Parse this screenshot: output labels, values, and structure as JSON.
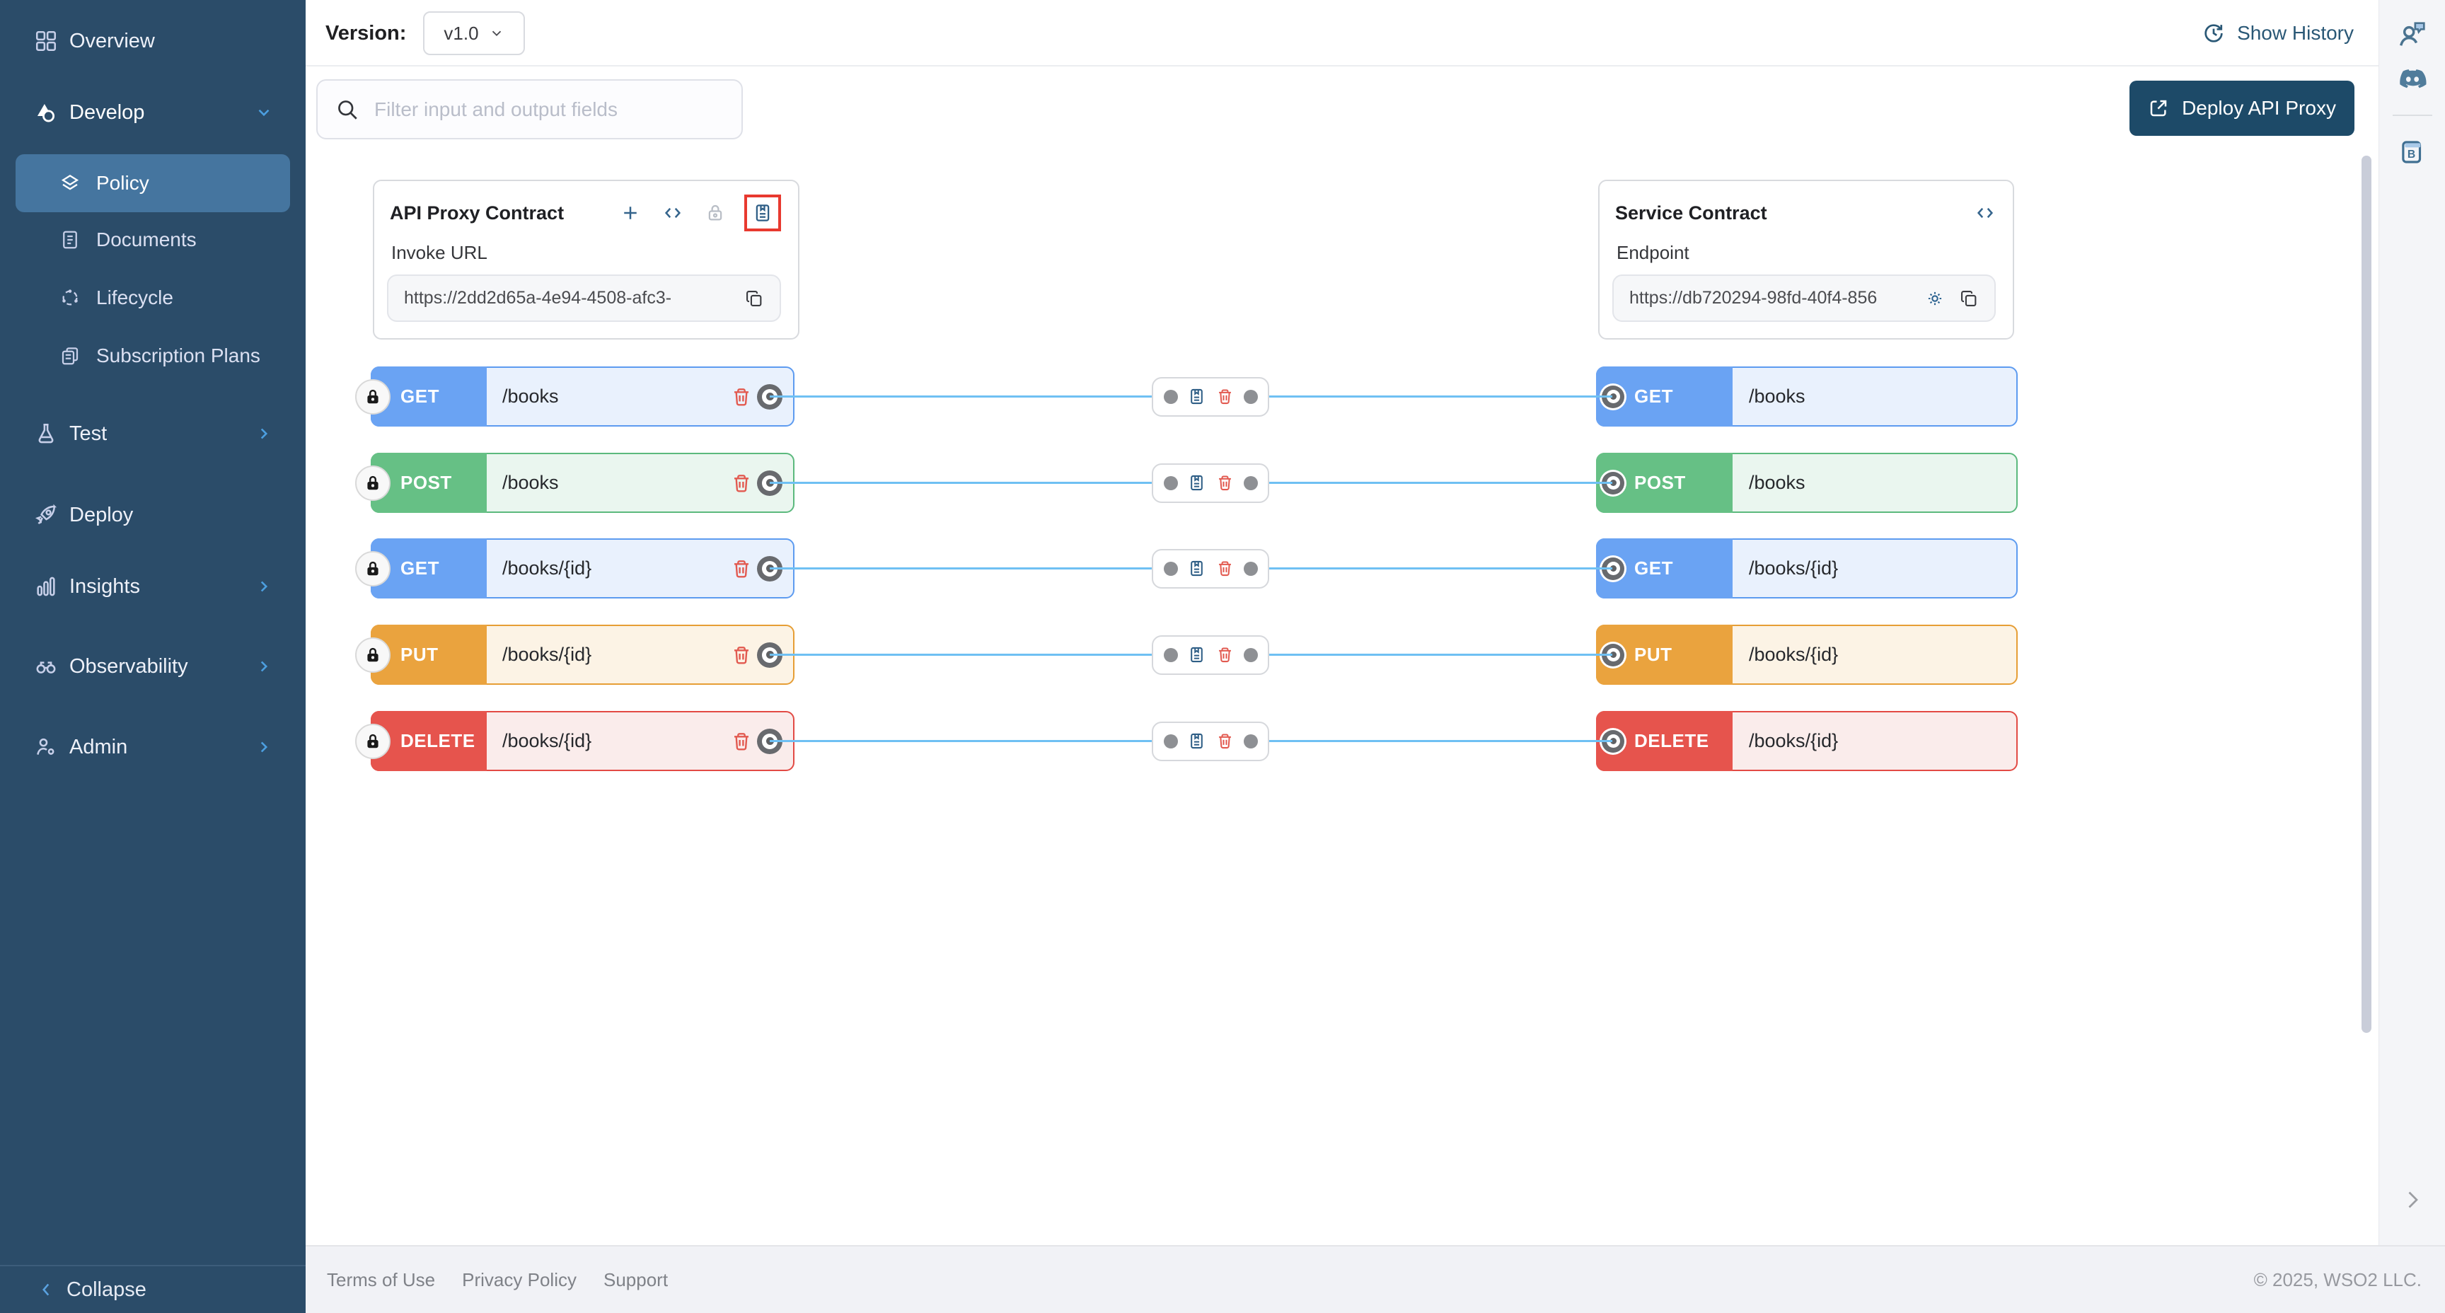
{
  "topbar": {
    "version_label": "Version:",
    "version_value": "v1.0",
    "show_history": "Show History"
  },
  "toolbar": {
    "filter_placeholder": "Filter input and output fields",
    "deploy_button": "Deploy API Proxy"
  },
  "sidebar": {
    "items": [
      {
        "label": "Overview",
        "icon": "grid-icon"
      },
      {
        "label": "Develop",
        "icon": "develop-icon",
        "state": "expanded"
      },
      {
        "label": "Policy",
        "icon": "layers-icon",
        "state": "selected"
      },
      {
        "label": "Documents",
        "icon": "document-icon"
      },
      {
        "label": "Lifecycle",
        "icon": "lifecycle-icon"
      },
      {
        "label": "Subscription Plans",
        "icon": "subscription-icon"
      },
      {
        "label": "Test",
        "icon": "flask-icon",
        "state": "collapsed"
      },
      {
        "label": "Deploy",
        "icon": "rocket-icon"
      },
      {
        "label": "Insights",
        "icon": "bar-chart-icon",
        "state": "collapsed"
      },
      {
        "label": "Observability",
        "icon": "binoculars-icon",
        "state": "collapsed"
      },
      {
        "label": "Admin",
        "icon": "admin-icon",
        "state": "collapsed"
      }
    ],
    "collapse_label": "Collapse"
  },
  "proxy_card": {
    "title": "API Proxy Contract",
    "field_label": "Invoke URL",
    "field_value": "https://2dd2d65a-4e94-4508-afc3-",
    "header_icons": [
      "add-resource-icon",
      "code-view-icon",
      "security-lock-icon",
      "policy-notebook-icon"
    ]
  },
  "service_card": {
    "title": "Service Contract",
    "field_label": "Endpoint",
    "field_value": "https://db720294-98fd-40f4-856",
    "header_icons": [
      "code-view-icon"
    ]
  },
  "mappings": [
    {
      "method": "GET",
      "proxy_path": "/books",
      "service_path": "/books",
      "color": "#6aa3f3",
      "border": "#5d9bf0",
      "tint": "#e9f1fd"
    },
    {
      "method": "POST",
      "proxy_path": "/books",
      "service_path": "/books",
      "color": "#66c085",
      "border": "#5bb97d",
      "tint": "#eaf6ef"
    },
    {
      "method": "GET",
      "proxy_path": "/books/{id}",
      "service_path": "/books/{id}",
      "color": "#6aa3f3",
      "border": "#5d9bf0",
      "tint": "#e9f1fd"
    },
    {
      "method": "PUT",
      "proxy_path": "/books/{id}",
      "service_path": "/books/{id}",
      "color": "#eaa33e",
      "border": "#e69e35",
      "tint": "#fcf3e5"
    },
    {
      "method": "DELETE",
      "proxy_path": "/books/{id}",
      "service_path": "/books/{id}",
      "color": "#e6544d",
      "border": "#e24a44",
      "tint": "#faeceb"
    }
  ],
  "right_rail": {
    "icons": [
      "feedback-icon",
      "discord-icon",
      "docs-book-icon",
      "expand-panel-chevron-icon"
    ]
  },
  "colors": {
    "connector": "#6fc0f3",
    "annotation": "#e8392f",
    "sidebar_bg": "#2b4c69",
    "selected_item": "#45759f",
    "deploy_button_bg": "#1d4a68"
  },
  "footer": {
    "links": [
      "Terms of Use",
      "Privacy Policy",
      "Support"
    ],
    "copyright": "© 2025, WSO2 LLC."
  }
}
